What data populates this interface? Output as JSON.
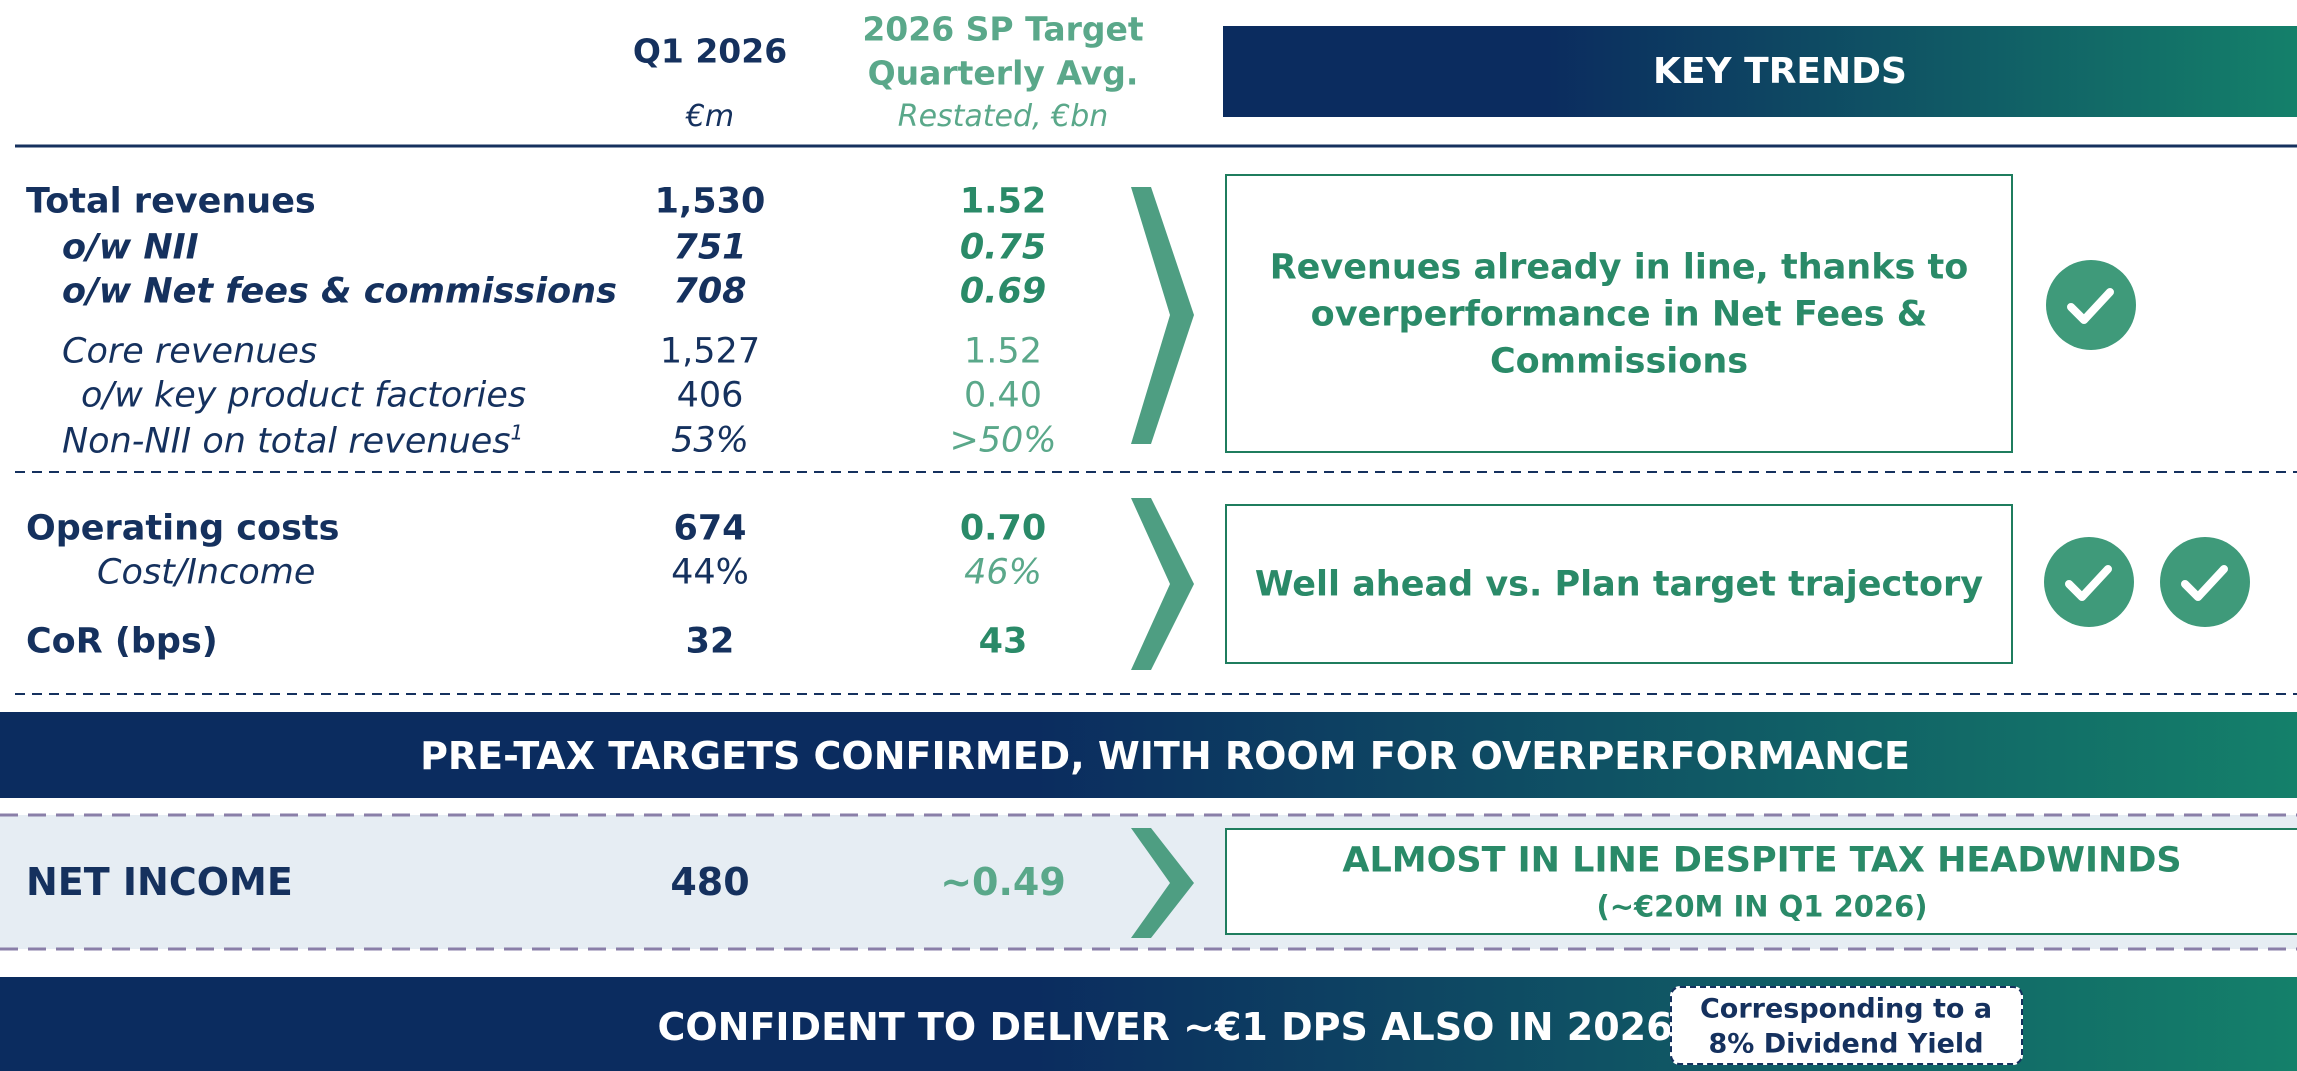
{
  "header": {
    "col1_title": "Q1 2026",
    "col1_unit": "€m",
    "col2_title": [
      "2026 SP Target",
      "Quarterly Avg."
    ],
    "col2_unit": "Restated, €bn",
    "key_trends": "KEY TRENDS"
  },
  "revenues": {
    "rows": [
      {
        "label": "Total revenues",
        "q1": "1,530",
        "target": "1.52"
      },
      {
        "label": "o/w NII",
        "q1": "751",
        "target": "0.75"
      },
      {
        "label": "o/w Net fees & commissions",
        "q1": "708",
        "target": "0.69"
      },
      {
        "label": "Core revenues",
        "q1": "1,527",
        "target": "1.52"
      },
      {
        "label": "o/w key product factories",
        "q1": "406",
        "target": "0.40"
      },
      {
        "label": "Non-NII on total revenues",
        "footnote": "1",
        "q1": "53%",
        "target": ">50%"
      }
    ],
    "trend": [
      "Revenues already in line, thanks to",
      "overperformance in Net Fees &",
      "Commissions"
    ]
  },
  "costs": {
    "rows": [
      {
        "label": "Operating costs",
        "q1": "674",
        "target": "0.70"
      },
      {
        "label": "Cost/Income",
        "q1": "44%",
        "target": "46%"
      },
      {
        "label": "CoR (bps)",
        "q1": "32",
        "target": "43"
      }
    ],
    "trend": "Well ahead vs. Plan target trajectory"
  },
  "banner1": "PRE-TAX TARGETS CONFIRMED, WITH ROOM FOR OVERPERFORMANCE",
  "net_income": {
    "label": "NET INCOME",
    "q1": "480",
    "target": "~0.49",
    "trend": [
      "ALMOST IN LINE DESPITE TAX HEADWINDS",
      "(~€20M IN Q1 2026)"
    ]
  },
  "banner2": {
    "text": "CONFIDENT TO DELIVER ~€1 DPS ALSO IN 2026",
    "note": [
      "Corresponding to a",
      "8% Dividend Yield"
    ]
  }
}
